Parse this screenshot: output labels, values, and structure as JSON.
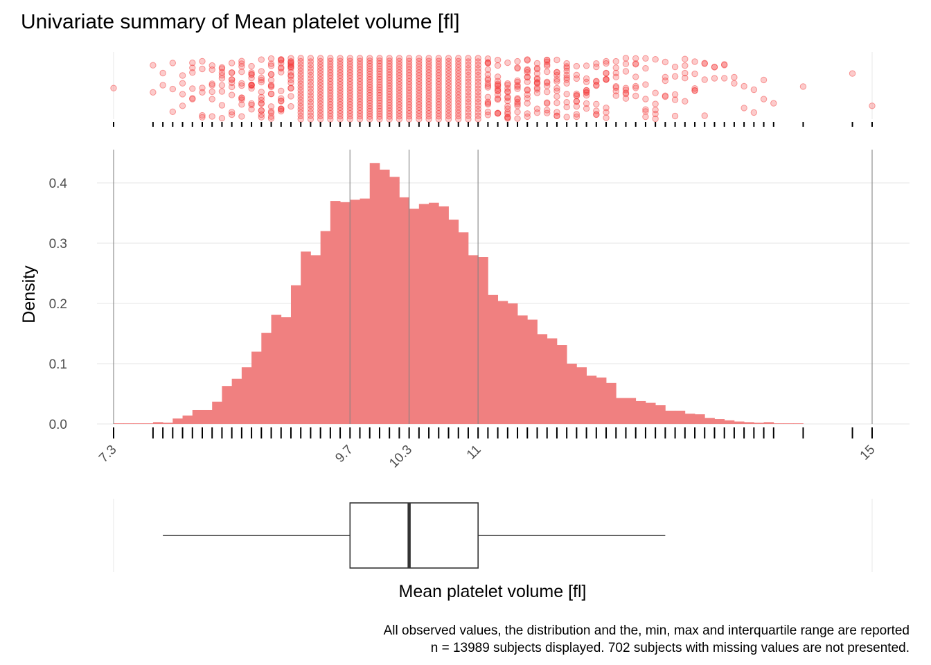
{
  "title": "Univariate summary of Mean platelet volume [fl]",
  "caption": {
    "line1": "All observed values, the distribution and the, min, max and interquartile range are reported",
    "line2": "n = 13989 subjects displayed. 702 subjects with missing values are not presented."
  },
  "colors": {
    "points": "#F22F2F",
    "bars": "#F08080",
    "grid": "#EBEBEB",
    "vlines": "#9E9E9E",
    "text": "#4D4D4D",
    "box": "#333333"
  },
  "chart_data": {
    "type": "bar",
    "title": "Univariate summary of Mean platelet volume [fl]",
    "xlabel": "Mean platelet volume [fl]",
    "ylabel": "Density",
    "xlim": [
      7.3,
      15
    ],
    "ylim": [
      0,
      0.45
    ],
    "x_ticks": [
      "7.3",
      "9.7",
      "10.3",
      "11",
      "15"
    ],
    "x_tick_values": [
      7.3,
      9.7,
      10.3,
      11,
      15
    ],
    "y_ticks": [
      "0.0",
      "0.1",
      "0.2",
      "0.3",
      "0.4"
    ],
    "y_tick_values": [
      0,
      0.1,
      0.2,
      0.3,
      0.4
    ],
    "grid": true,
    "bin_width": 0.1,
    "bin_start": 7.3,
    "densities": [
      0.001,
      0.001,
      0.001,
      0.001,
      0.003,
      0.002,
      0.009,
      0.014,
      0.023,
      0.023,
      0.037,
      0.063,
      0.075,
      0.094,
      0.12,
      0.151,
      0.181,
      0.177,
      0.23,
      0.286,
      0.28,
      0.32,
      0.37,
      0.368,
      0.372,
      0.374,
      0.433,
      0.422,
      0.41,
      0.376,
      0.357,
      0.365,
      0.367,
      0.361,
      0.339,
      0.318,
      0.28,
      0.277,
      0.214,
      0.204,
      0.2,
      0.18,
      0.173,
      0.149,
      0.142,
      0.131,
      0.1,
      0.094,
      0.08,
      0.077,
      0.068,
      0.043,
      0.043,
      0.038,
      0.035,
      0.031,
      0.022,
      0.022,
      0.017,
      0.016,
      0.01,
      0.008,
      0.006,
      0.004,
      0.003,
      0.002,
      0.003,
      0.001,
      0.001,
      0.001
    ],
    "reference_lines": [
      7.3,
      9.7,
      10.3,
      11,
      15
    ],
    "rug_values": [
      7.3,
      7.7,
      7.8,
      7.9,
      8.0,
      8.1,
      8.2,
      8.3,
      8.4,
      8.5,
      8.6,
      8.7,
      8.8,
      8.9,
      9.0,
      9.1,
      9.2,
      9.3,
      9.4,
      9.5,
      9.6,
      9.7,
      9.8,
      9.9,
      10.0,
      10.1,
      10.2,
      10.3,
      10.4,
      10.5,
      10.6,
      10.7,
      10.8,
      10.9,
      11.0,
      11.1,
      11.2,
      11.3,
      11.4,
      11.5,
      11.6,
      11.7,
      11.8,
      11.9,
      12.0,
      12.1,
      12.2,
      12.3,
      12.4,
      12.5,
      12.6,
      12.7,
      12.8,
      12.9,
      13.0,
      13.1,
      13.2,
      13.3,
      13.4,
      13.5,
      13.6,
      13.7,
      13.8,
      13.9,
      14.0,
      14.3,
      14.8,
      15.0
    ],
    "boxplot": {
      "min": 7.8,
      "q1": 9.7,
      "median": 10.3,
      "q3": 11.0,
      "max": 12.9
    }
  }
}
